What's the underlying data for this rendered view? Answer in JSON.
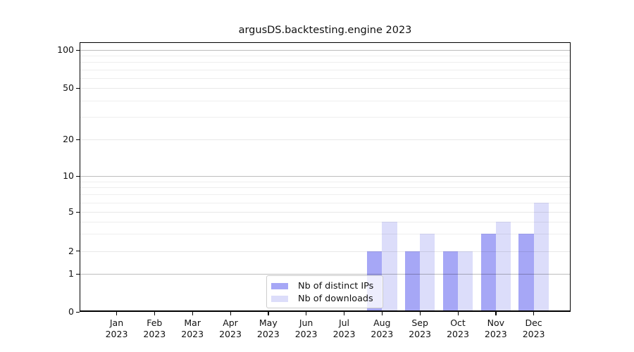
{
  "title": "argusDS.backtesting.engine 2023",
  "chart_data": {
    "type": "bar",
    "title": "argusDS.backtesting.engine 2023",
    "categories": [
      "Jan",
      "Feb",
      "Mar",
      "Apr",
      "May",
      "Jun",
      "Jul",
      "Aug",
      "Sep",
      "Oct",
      "Nov",
      "Dec"
    ],
    "x_tick_year": "2023",
    "series": [
      {
        "name": "Nb of distinct IPs",
        "color": "#a6a7f6",
        "values": [
          0,
          0,
          0,
          0,
          0,
          0,
          0,
          2,
          2,
          2,
          3,
          3
        ]
      },
      {
        "name": "Nb of downloads",
        "color": "#dcddfa",
        "values": [
          0,
          0,
          0,
          0,
          0,
          0,
          0,
          4,
          3,
          2,
          4,
          6
        ]
      }
    ],
    "xlabel": "",
    "ylabel": "",
    "y_ticks": [
      0,
      1,
      2,
      5,
      10,
      20,
      50,
      100
    ],
    "y_minor_gridlines": [
      3,
      4,
      6,
      7,
      8,
      9,
      30,
      40,
      60,
      70,
      80,
      90
    ],
    "y_major_gridlines": [
      1,
      10,
      100
    ],
    "y_scale": "symlog",
    "ylim": [
      0,
      115
    ],
    "grid": true,
    "legend_position": "lower center inside axes"
  }
}
